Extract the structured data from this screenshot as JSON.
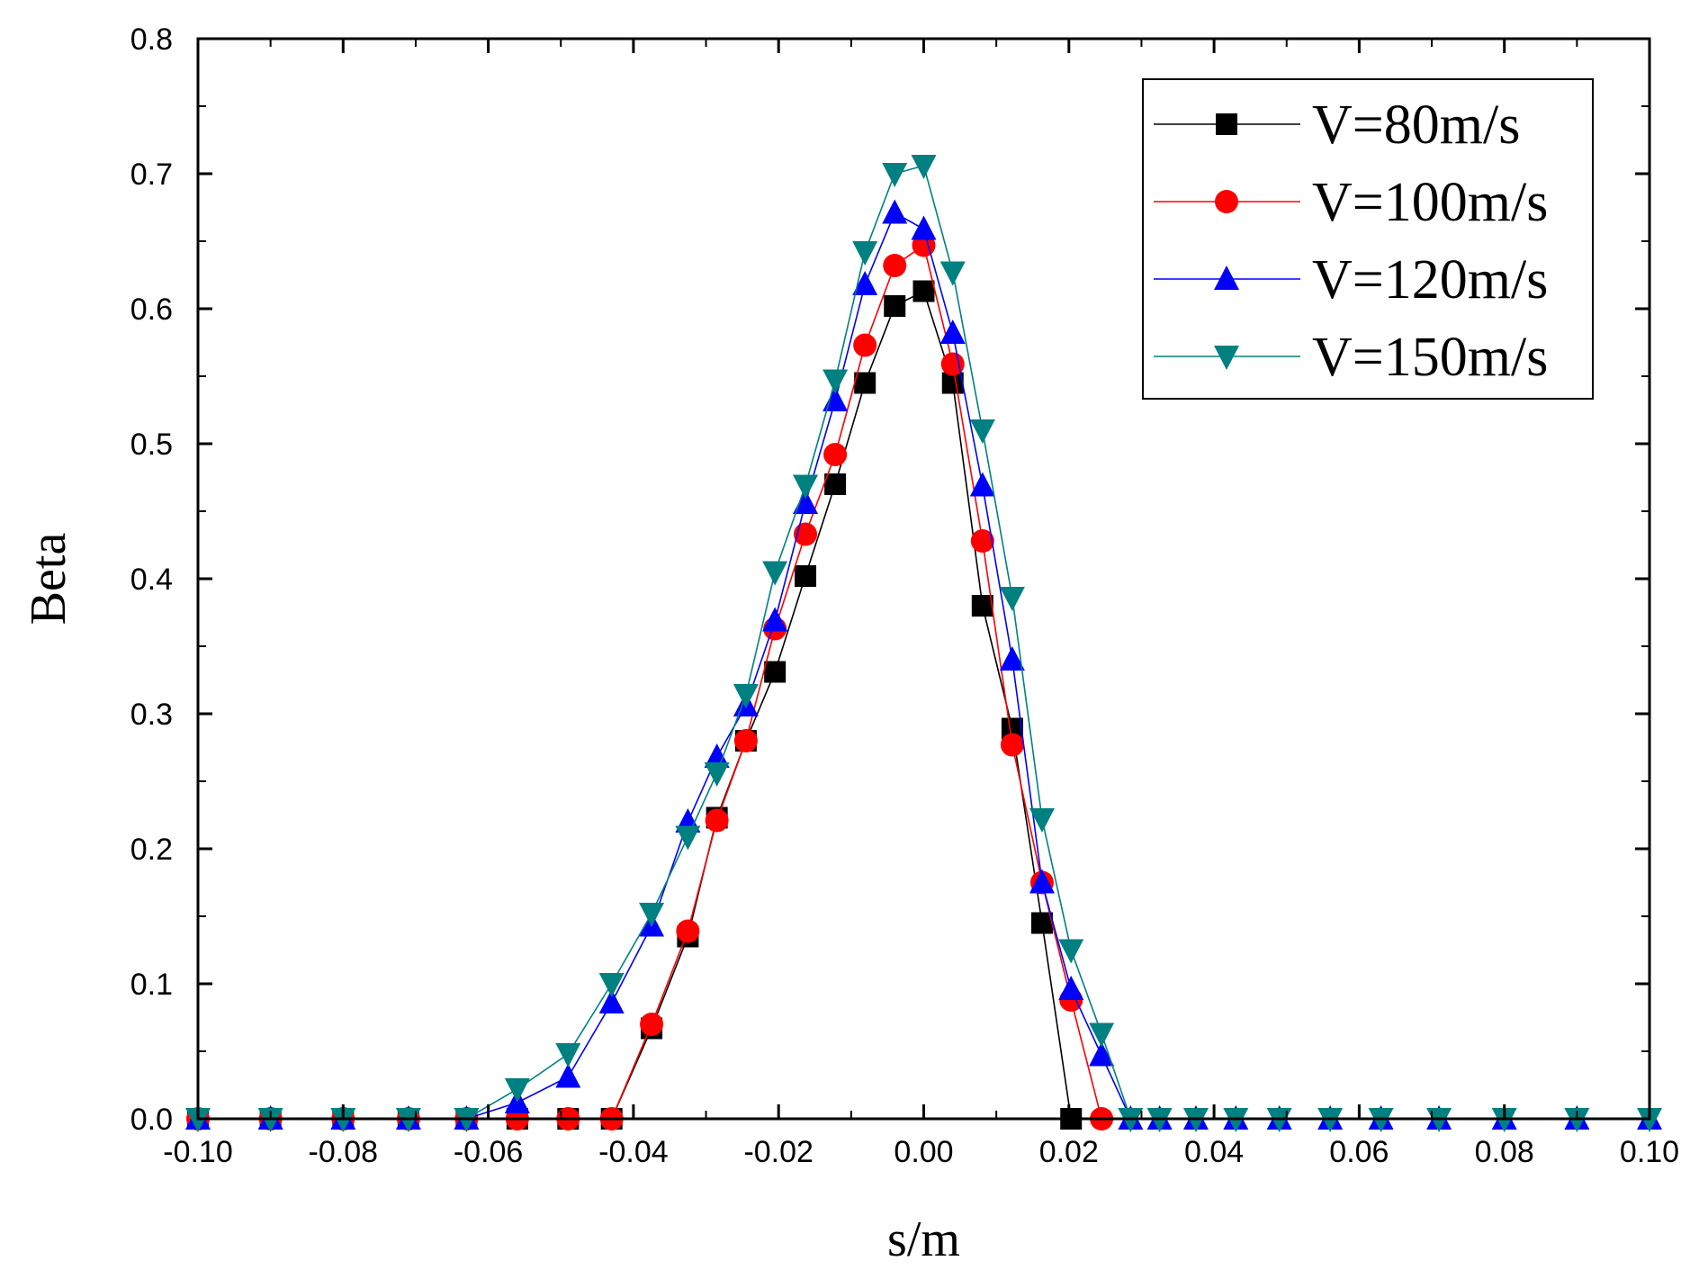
{
  "chart_data": {
    "type": "line",
    "title": "",
    "xlabel": "s/m",
    "ylabel": "Beta",
    "xlim": [
      -0.1,
      0.1
    ],
    "ylim": [
      0.0,
      0.8
    ],
    "xticks": [
      -0.1,
      -0.08,
      -0.06,
      -0.04,
      -0.02,
      0.0,
      0.02,
      0.04,
      0.06,
      0.08,
      0.1
    ],
    "xtick_labels": [
      "-0.10",
      "-0.08",
      "-0.06",
      "-0.04",
      "-0.02",
      "0.00",
      "0.02",
      "0.04",
      "0.06",
      "0.08",
      "0.10"
    ],
    "yticks": [
      0.0,
      0.1,
      0.2,
      0.3,
      0.4,
      0.5,
      0.6,
      0.7,
      0.8
    ],
    "ytick_labels": [
      "0.0",
      "0.1",
      "0.2",
      "0.3",
      "0.4",
      "0.5",
      "0.6",
      "0.7",
      "0.8"
    ],
    "grid": false,
    "legend_position": "top-right",
    "series": [
      {
        "name": "V=80m/s",
        "color": "#000000",
        "marker": "square",
        "x": [
          -0.1,
          -0.09,
          -0.08,
          -0.071,
          -0.063,
          -0.056,
          -0.049,
          -0.043,
          -0.0375,
          -0.0325,
          -0.0285,
          -0.0245,
          -0.0205,
          -0.0163,
          -0.0122,
          -0.0081,
          -0.004,
          0.0,
          0.004,
          0.0081,
          0.0122,
          0.0163,
          0.0203
        ],
        "y": [
          0.0,
          0.0,
          0.0,
          0.0,
          0.0,
          0.0,
          0.0,
          0.0,
          0.067,
          0.135,
          0.223,
          0.28,
          0.331,
          0.402,
          0.47,
          0.545,
          0.602,
          0.613,
          0.545,
          0.38,
          0.289,
          0.145,
          0.0
        ]
      },
      {
        "name": "V=100m/s",
        "color": "#ff0000",
        "marker": "circle",
        "x": [
          -0.1,
          -0.09,
          -0.08,
          -0.071,
          -0.063,
          -0.056,
          -0.049,
          -0.043,
          -0.0375,
          -0.0325,
          -0.0285,
          -0.0245,
          -0.0205,
          -0.0163,
          -0.0122,
          -0.0081,
          -0.004,
          0.0,
          0.004,
          0.0081,
          0.0122,
          0.0163,
          0.0203,
          0.0245
        ],
        "y": [
          0.0,
          0.0,
          0.0,
          0.0,
          0.0,
          0.0,
          0.0,
          0.0,
          0.07,
          0.139,
          0.221,
          0.28,
          0.363,
          0.433,
          0.492,
          0.573,
          0.632,
          0.647,
          0.559,
          0.428,
          0.277,
          0.175,
          0.088,
          0.0
        ]
      },
      {
        "name": "V=120m/s",
        "color": "#0000ff",
        "marker": "triangle-up",
        "x": [
          -0.1,
          -0.09,
          -0.08,
          -0.071,
          -0.063,
          -0.056,
          -0.049,
          -0.043,
          -0.0375,
          -0.0325,
          -0.0285,
          -0.0245,
          -0.0205,
          -0.0163,
          -0.0122,
          -0.0081,
          -0.004,
          0.0,
          0.004,
          0.0081,
          0.0122,
          0.0163,
          0.0203,
          0.0245,
          0.0285,
          0.0325,
          0.0375,
          0.043,
          0.049,
          0.056,
          0.063,
          0.071,
          0.08,
          0.09,
          0.1
        ],
        "y": [
          0.0,
          0.0,
          0.0,
          0.0,
          0.0,
          0.012,
          0.031,
          0.086,
          0.143,
          0.22,
          0.268,
          0.306,
          0.369,
          0.456,
          0.532,
          0.618,
          0.671,
          0.659,
          0.582,
          0.469,
          0.34,
          0.175,
          0.096,
          0.047,
          0.0,
          0.0,
          0.0,
          0.0,
          0.0,
          0.0,
          0.0,
          0.0,
          0.0,
          0.0,
          0.0
        ]
      },
      {
        "name": "V=150m/s",
        "color": "#008080",
        "marker": "triangle-down",
        "x": [
          -0.1,
          -0.09,
          -0.08,
          -0.071,
          -0.063,
          -0.056,
          -0.049,
          -0.043,
          -0.0375,
          -0.0325,
          -0.0285,
          -0.0245,
          -0.0205,
          -0.0163,
          -0.0122,
          -0.0081,
          -0.004,
          0.0,
          0.004,
          0.0081,
          0.0122,
          0.0163,
          0.0203,
          0.0245,
          0.0285,
          0.0325,
          0.0375,
          0.043,
          0.049,
          0.056,
          0.063,
          0.071,
          0.08,
          0.09,
          0.1
        ],
        "y": [
          0.0,
          0.0,
          0.0,
          0.0,
          0.0,
          0.022,
          0.048,
          0.1,
          0.152,
          0.209,
          0.256,
          0.314,
          0.405,
          0.469,
          0.547,
          0.642,
          0.7,
          0.706,
          0.627,
          0.51,
          0.386,
          0.222,
          0.125,
          0.063,
          0.0,
          0.0,
          0.0,
          0.0,
          0.0,
          0.0,
          0.0,
          0.0,
          0.0,
          0.0,
          0.0
        ]
      }
    ]
  }
}
